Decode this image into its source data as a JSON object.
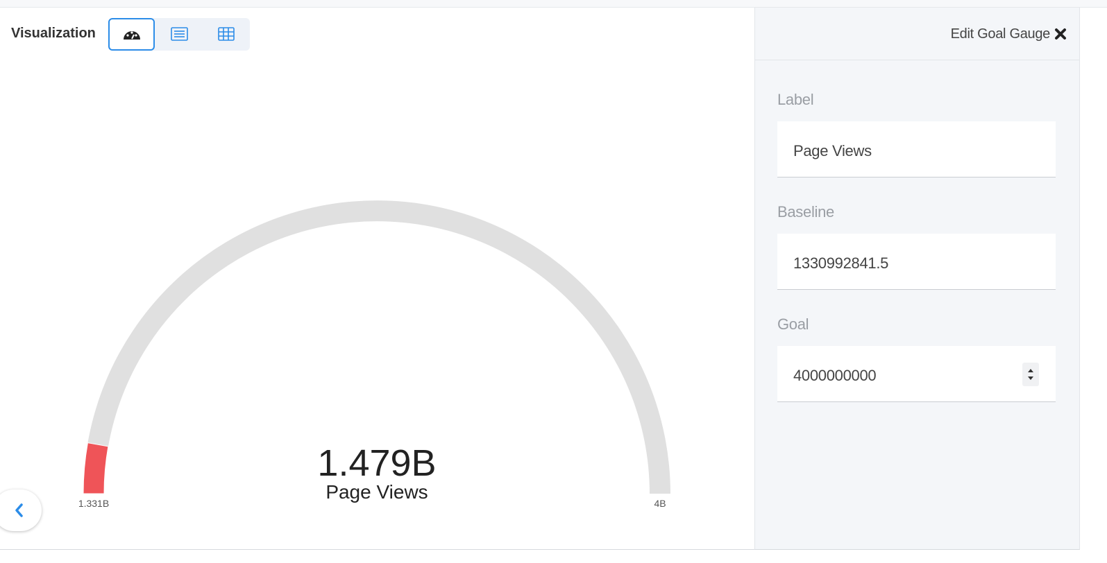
{
  "toolbar": {
    "title": "Visualization"
  },
  "gauge": {
    "type": "gauge",
    "value": 1479000000,
    "value_label": "1.479B",
    "label": "Page Views",
    "min": {
      "value": 1331000000,
      "label": "1.331B"
    },
    "max": {
      "value": 4000000000,
      "label": "4B"
    },
    "color": "#ef5458",
    "track_color": "#e0e0e0"
  },
  "panel": {
    "title": "Edit Goal Gauge",
    "fields": [
      {
        "label": "Label",
        "value": "Page Views"
      },
      {
        "label": "Baseline",
        "value": "1330992841.5"
      },
      {
        "label": "Goal",
        "value": "4000000000"
      }
    ]
  }
}
